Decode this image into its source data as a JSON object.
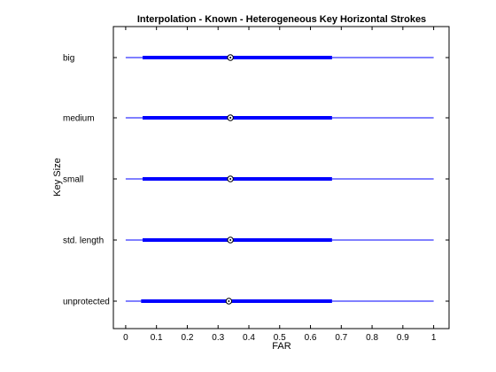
{
  "chart_data": {
    "type": "boxplot-horizontal",
    "title": "Interpolation - Known - Heterogeneous Key Horizontal Strokes",
    "xlabel": "FAR",
    "ylabel": "Key Size",
    "xlim": [
      -0.04,
      1.05
    ],
    "xticks": [
      0,
      0.1,
      0.2,
      0.3,
      0.4,
      0.5,
      0.6,
      0.7,
      0.8,
      0.9,
      1
    ],
    "xtick_labels": [
      "0",
      "0.1",
      "0.2",
      "0.3",
      "0.4",
      "0.5",
      "0.6",
      "0.7",
      "0.8",
      "0.9",
      "1"
    ],
    "grid": false,
    "colors": {
      "box": "#0000ff",
      "whisker": "#0000ff",
      "median": "#000000",
      "axes": "#000000"
    },
    "categories": [
      "big",
      "medium",
      "small",
      "std. length",
      "unprotected"
    ],
    "rows": [
      {
        "label": "big",
        "min": 0,
        "q1": 0.055,
        "median": 0.34,
        "q3": 0.67,
        "max": 1
      },
      {
        "label": "medium",
        "min": 0,
        "q1": 0.055,
        "median": 0.34,
        "q3": 0.67,
        "max": 1
      },
      {
        "label": "small",
        "min": 0,
        "q1": 0.055,
        "median": 0.34,
        "q3": 0.67,
        "max": 1
      },
      {
        "label": "std. length",
        "min": 0,
        "q1": 0.055,
        "median": 0.34,
        "q3": 0.67,
        "max": 1
      },
      {
        "label": "unprotected",
        "min": 0,
        "q1": 0.05,
        "median": 0.335,
        "q3": 0.67,
        "max": 1
      }
    ]
  }
}
